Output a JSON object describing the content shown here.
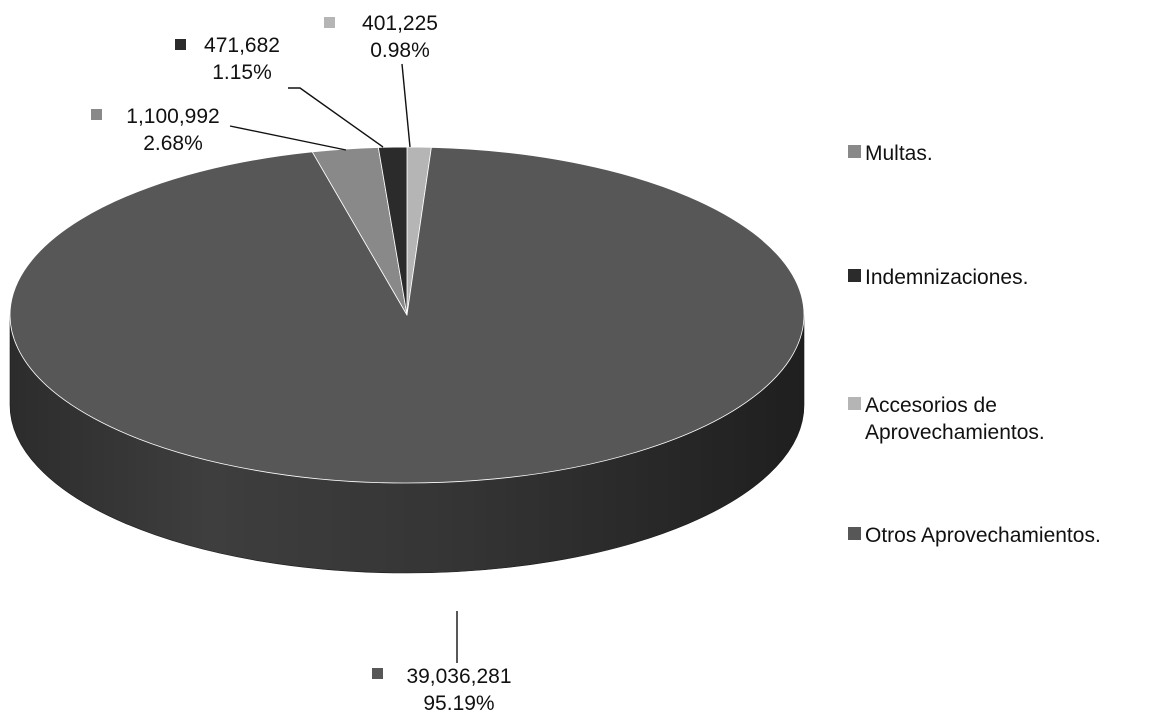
{
  "chart_data": {
    "type": "pie",
    "style": "3d",
    "legend_position": "right",
    "series": [
      {
        "name": "",
        "slices": [
          {
            "category": "Multas.",
            "value": 1100992,
            "value_label": "1,100,992",
            "percent_label": "2.68%",
            "color": "#898989"
          },
          {
            "category": "Indemnizaciones.",
            "value": 471682,
            "value_label": "471,682",
            "percent_label": "1.15%",
            "color": "#2b2b2b"
          },
          {
            "category": "Accesorios de Aprovechamientos.",
            "value": 401225,
            "value_label": "401,225",
            "percent_label": "0.98%",
            "color": "#b5b5b5"
          },
          {
            "category": "Otros Aprovechamientos.",
            "value": 39036281,
            "value_label": "39,036,281",
            "percent_label": "95.19%",
            "color": "#575757"
          }
        ]
      }
    ],
    "legend": [
      {
        "lines": [
          "Multas."
        ],
        "color": "#898989"
      },
      {
        "lines": [
          "Indemnizaciones."
        ],
        "color": "#2b2b2b"
      },
      {
        "lines": [
          "Accesorios de",
          "Aprovechamientos."
        ],
        "color": "#b5b5b5"
      },
      {
        "lines": [
          "Otros Aprovechamientos."
        ],
        "color": "#575757"
      }
    ]
  }
}
